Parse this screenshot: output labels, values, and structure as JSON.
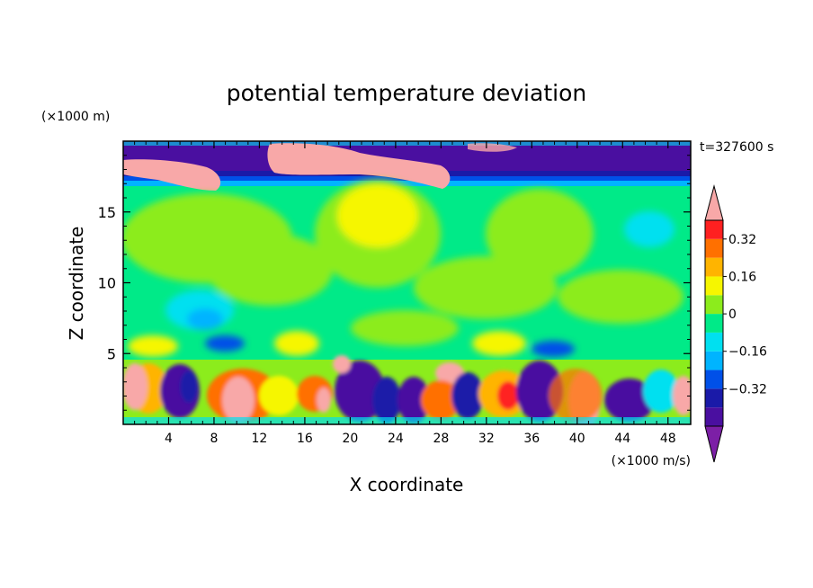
{
  "chart_data": {
    "type": "heatmap",
    "title": "potential temperature deviation",
    "xlabel": "X coordinate",
    "ylabel": "Z coordinate",
    "x_unit": "(×1000 m/s)",
    "y_unit": "(×1000 m)",
    "time_label": "t=327600 s",
    "xlim": [
      0,
      50
    ],
    "ylim": [
      0,
      20
    ],
    "x_ticks": [
      4,
      8,
      12,
      16,
      20,
      24,
      28,
      32,
      36,
      40,
      44,
      48
    ],
    "y_ticks": [
      5,
      10,
      15
    ],
    "colorbar": {
      "levels": [
        -0.48,
        -0.4,
        -0.32,
        -0.24,
        -0.16,
        -0.08,
        0,
        0.08,
        0.16,
        0.24,
        0.32,
        0.4
      ],
      "colors": [
        "#7c1fa6",
        "#4a0fa0",
        "#1a1aa8",
        "#0050e8",
        "#00b4ff",
        "#00e0f0",
        "#00ea88",
        "#8cec1c",
        "#f6f600",
        "#ffb400",
        "#ff7000",
        "#ff2020",
        "#f8a8a8"
      ],
      "tick_labels": [
        {
          "value": 0.32,
          "label": "0.32"
        },
        {
          "value": 0.16,
          "label": "0.16"
        },
        {
          "value": 0,
          "label": "0"
        },
        {
          "value": -0.16,
          "label": "−0.16"
        },
        {
          "value": -0.32,
          "label": "−0.32"
        }
      ]
    }
  }
}
